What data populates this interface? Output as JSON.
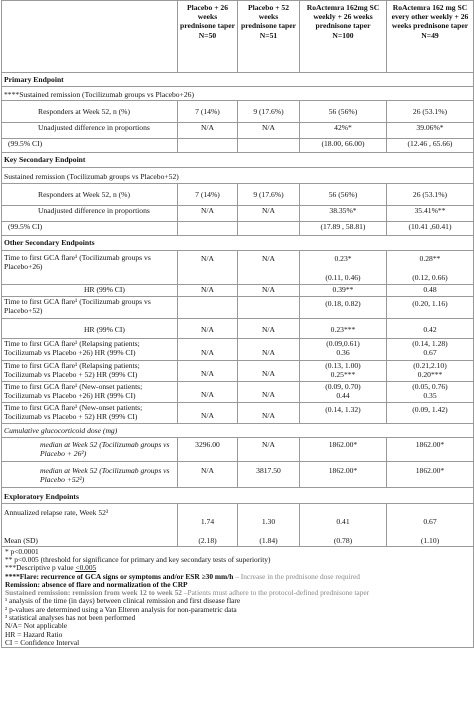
{
  "headers": {
    "col1": "Placebo + 26 weeks prednisone taper",
    "col1_n": "N=50",
    "col2": "Placebo + 52 weeks prednisone taper",
    "col2_n": "N=51",
    "col3": "RoActemra 162mg SC weekly + 26 weeks prednisone taper",
    "col3_n": "N=100",
    "col4": "RoActemra 162 mg SC every other weekly + 26 weeks prednisone taper",
    "col4_n": "N=49"
  },
  "primary": {
    "title": "Primary Endpoint",
    "subtitle": "****Sustained remission (Tocilizumab groups vs Placebo+26)",
    "r1": {
      "label": "Responders at Week 52, n (%)",
      "c1": "7 (14%)",
      "c2": "9 (17.6%)",
      "c3": "56 (56%)",
      "c4": "26 (53.1%)"
    },
    "r2": {
      "label": "Unadjusted difference in proportions",
      "c1": "N/A",
      "c2": "N/A",
      "c3": "42%*",
      "c4": "39.06%*"
    },
    "r3": {
      "label": "(99.5% CI)",
      "c3": "(18.00, 66.00)",
      "c4": "(12.46 , 65.66)"
    }
  },
  "key_secondary": {
    "title": "Key Secondary Endpoint",
    "subtitle": "Sustained remission  (Tocilizumab groups vs Placebo+52)",
    "r1": {
      "label": "Responders at Week 52, n (%)",
      "c1": "7 (14%)",
      "c2": "9 (17.6%)",
      "c3": "56 (56%)",
      "c4": "26 (53.1%)"
    },
    "r2": {
      "label": "Unadjusted difference in proportions",
      "c1": "N/A",
      "c2": "N/A",
      "c3": "38.35%*",
      "c4": "35.41%**"
    },
    "r3": {
      "label": "(99.5% CI)",
      "c3": "(17.89 , 58.81)",
      "c4": "(10.41 ,60.41)"
    }
  },
  "other": {
    "title": "Other Secondary Endpoints",
    "flare1": {
      "label": "Time to first GCA flare¹ (Tocilizumab groups vs Placebo+26)",
      "c1": "N/A",
      "c2": "N/A",
      "c3a": "0.23*",
      "c3b": "(0.11, 0.46)",
      "c4a": "0.28**",
      "c4b": "(0.12, 0.66)"
    },
    "hr1": {
      "label": "HR (99% CI)",
      "c1": "N/A",
      "c2": "N/A",
      "c3": "0.39**",
      "c4": "0.48"
    },
    "flare2": {
      "label": "Time to first GCA flare¹ (Tocilizumab groups vs Placebo+52)",
      "c3": "(0.18, 0.82)",
      "c4": "(0.20, 1.16)"
    },
    "hr2": {
      "label": "HR (99% CI)",
      "c1": "N/A",
      "c2": "N/A",
      "c3": "0.23***",
      "c4": "0.42"
    },
    "rel1": {
      "label": "Time to first GCA flare¹ (Relapsing patients; Tocilizumab vs Placebo +26) HR (99% CI)",
      "c1": "N/A",
      "c2": "N/A",
      "c3a": "(0.09,0.61)",
      "c3b": "0.36",
      "c4a": "(0.14, 1.28)",
      "c4b": "0.67"
    },
    "rel2": {
      "label": "Time to first GCA flare¹ (Relapsing patients; Tocilizumab vs Placebo + 52) HR (99% CI)",
      "c1": "N/A",
      "c2": "N/A",
      "c3a": "(0.13, 1.00)",
      "c3b": "0.25***",
      "c4a": "(0.21,2.10)",
      "c4b": "0.20***"
    },
    "new1": {
      "label": "Time to first GCA flare¹ (New-onset patients; Tocilizumab vs Placebo +26) HR (99% CI)",
      "c1": "N/A",
      "c2": "N/A",
      "c3a": "(0.09, 0.70)",
      "c3b": "0.44",
      "c4a": "(0.05, 0.76)",
      "c4b": "0.35"
    },
    "new2": {
      "label": "Time to first GCA flare¹ (New-onset patients; Tocilizumab vs Placebo + 52) HR (99% CI)",
      "c1": "N/A",
      "c2": "N/A",
      "c3": "(0.14, 1.32)",
      "c4": "(0.09, 1.42)"
    },
    "cum": {
      "label": "Cumulative glucocorticoid dose (mg)"
    },
    "med1": {
      "label": "median at Week 52 (Tocilizumab groups vs Placebo + 26²)",
      "c1": "3296.00",
      "c2": "N/A",
      "c3": "1862.00*",
      "c4": "1862.00*"
    },
    "med2": {
      "label": "median at Week 52 (Tocilizumab groups vs Placebo +52²)",
      "c1": "N/A",
      "c2": "3817.50",
      "c3": "1862.00*",
      "c4": "1862.00*"
    }
  },
  "exploratory": {
    "title": "Exploratory Endpoints",
    "label": "Annualized relapse rate, Week 52³",
    "vals": {
      "c1": "1.74",
      "c2": "1.30",
      "c3": "0.41",
      "c4": "0.67"
    },
    "sd_label": "Mean (SD)",
    "sd": {
      "c1": "(2.18)",
      "c2": "(1.84)",
      "c3": "(0.78)",
      "c4": "(1.10)"
    }
  },
  "footnotes": {
    "f1": "* p<0.0001",
    "f2": "** p<0.005 (threshold for significance for primary and key secondary tests of superiority)",
    "f3a": "***Descriptive p value ",
    "f3b": "<0.005",
    "f4a": "****Flare: recurrence of GCA signs or symptoms and/or ESR ≥30 mm/h",
    "f4b": " – Increase in the prednisone dose required",
    "f5": "Remission: absence of flare and normalization of the CRP",
    "f6a": "Sustained remission: remission from week 12 to week 52",
    "f6b": " –Patients must adhere to the protocol-defined prednisone taper",
    "f7": "¹ analysis of the time (in days) between clinical remission and first disease flare",
    "f8": "² p-values are determined using a Van Elteren analysis for non-parametric data",
    "f9": "³ statistical analyses has not been performed",
    "f10": "N/A= Not applicable",
    "f11": "HR = Hazard Ratio",
    "f12": "CI = Confidence Interval"
  }
}
